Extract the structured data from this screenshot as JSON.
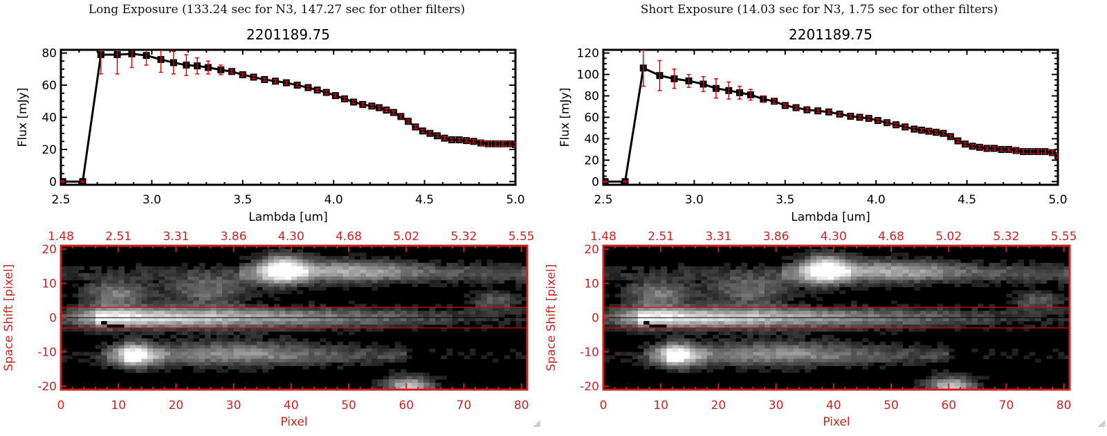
{
  "panels": [
    {
      "id": "long",
      "exposure_title": "Long Exposure (133.24 sec for N3, 147.27 sec for other filters)",
      "spectrum_title": "2201189.75",
      "colors": {
        "line": "#000000",
        "error": "#e00000",
        "frame_image": "#cc2222",
        "aperture": "#e00000"
      }
    },
    {
      "id": "short",
      "exposure_title": "Short Exposure (14.03 sec for N3, 1.75 sec for other filters)",
      "spectrum_title": "2201189.75",
      "colors": {
        "line": "#000000",
        "error": "#e00000",
        "frame_image": "#cc2222",
        "aperture": "#e00000"
      }
    }
  ],
  "chart_data": [
    {
      "type": "line",
      "title": "2201189.75",
      "xlabel": "Lambda [um]",
      "ylabel": "Flux [mJy]",
      "xlim": [
        2.5,
        5.0
      ],
      "ylim": [
        -2,
        82
      ],
      "xticks": [
        "2.5",
        "3.0",
        "3.5",
        "4.0",
        "4.5",
        "5.0"
      ],
      "xtick_values": [
        2.5,
        3.0,
        3.5,
        4.0,
        4.5,
        5.0
      ],
      "yticks": [
        "0",
        "20",
        "40",
        "60",
        "80"
      ],
      "ytick_values": [
        0,
        20,
        40,
        60,
        80
      ],
      "grid": false,
      "series": [
        {
          "name": "Long Exposure",
          "x": [
            2.51,
            2.62,
            2.72,
            2.81,
            2.89,
            2.97,
            3.05,
            3.12,
            3.19,
            3.25,
            3.31,
            3.38,
            3.44,
            3.5,
            3.56,
            3.62,
            3.68,
            3.74,
            3.8,
            3.86,
            3.91,
            3.96,
            4.01,
            4.06,
            4.11,
            4.16,
            4.21,
            4.25,
            4.29,
            4.33,
            4.37,
            4.41,
            4.45,
            4.49,
            4.53,
            4.57,
            4.61,
            4.65,
            4.69,
            4.73,
            4.77,
            4.81,
            4.85,
            4.89,
            4.93,
            4.97,
            5.0
          ],
          "y": [
            0,
            0,
            79,
            79,
            79.5,
            78.5,
            76,
            74,
            72.5,
            72,
            71,
            69.5,
            68.5,
            66.5,
            65,
            63.5,
            62.5,
            61.5,
            60,
            58.5,
            57,
            55.5,
            53.5,
            51.5,
            49.5,
            48,
            47,
            46,
            44.5,
            43,
            40.5,
            37.5,
            34,
            31.5,
            30,
            28.5,
            27,
            26,
            26,
            25.5,
            25,
            24,
            23.5,
            23.5,
            23.5,
            23.5,
            23
          ],
          "err": [
            0.5,
            0.5,
            12,
            12,
            8.5,
            6,
            8,
            7,
            6.5,
            5,
            4,
            3,
            1,
            1,
            1,
            1,
            1,
            1,
            1,
            1,
            1,
            1,
            1,
            1,
            1,
            1,
            1,
            1,
            1,
            1,
            1,
            1,
            1,
            1,
            1,
            1,
            1,
            1,
            1,
            1,
            1,
            1.5,
            1.5,
            1.5,
            1.5,
            1.5,
            1.5
          ]
        }
      ]
    },
    {
      "type": "line",
      "title": "2201189.75",
      "xlabel": "Lambda [um]",
      "ylabel": "Flux [mJy]",
      "xlim": [
        2.5,
        5.0
      ],
      "ylim": [
        -3,
        123
      ],
      "xticks": [
        "2.5",
        "3.0",
        "3.5",
        "4.0",
        "4.5",
        "5.0"
      ],
      "xtick_values": [
        2.5,
        3.0,
        3.5,
        4.0,
        4.5,
        5.0
      ],
      "yticks": [
        "0",
        "20",
        "40",
        "60",
        "80",
        "100",
        "120"
      ],
      "ytick_values": [
        0,
        20,
        40,
        60,
        80,
        100,
        120
      ],
      "grid": false,
      "series": [
        {
          "name": "Short Exposure",
          "x": [
            2.51,
            2.62,
            2.72,
            2.81,
            2.89,
            2.97,
            3.05,
            3.12,
            3.19,
            3.25,
            3.31,
            3.38,
            3.44,
            3.5,
            3.56,
            3.62,
            3.68,
            3.74,
            3.8,
            3.86,
            3.91,
            3.96,
            4.01,
            4.06,
            4.11,
            4.16,
            4.21,
            4.25,
            4.29,
            4.33,
            4.37,
            4.41,
            4.45,
            4.49,
            4.53,
            4.57,
            4.61,
            4.65,
            4.69,
            4.73,
            4.77,
            4.81,
            4.85,
            4.89,
            4.93,
            4.97,
            5.0
          ],
          "y": [
            0,
            0,
            106,
            99,
            96,
            94,
            91,
            87,
            85,
            83,
            81,
            77,
            75,
            71,
            69,
            67,
            66,
            65,
            63,
            61,
            60,
            59,
            57,
            55,
            53,
            51,
            49,
            48,
            47,
            46,
            45,
            42,
            38,
            35,
            33,
            32,
            31,
            31,
            30,
            30,
            29,
            28,
            28,
            28,
            28,
            27,
            24
          ],
          "err": [
            0.5,
            0.5,
            17,
            14,
            9,
            6,
            7,
            9,
            8,
            6,
            5,
            3,
            2,
            1.5,
            1.5,
            1.5,
            1.5,
            1.5,
            1.5,
            1.5,
            1.5,
            1.5,
            1.5,
            1.5,
            1.5,
            1.5,
            1.5,
            1.5,
            1.5,
            1.5,
            1.5,
            1.5,
            1.5,
            1.5,
            1.5,
            1.5,
            1.5,
            1.5,
            1.5,
            1.5,
            2,
            2,
            2,
            2,
            2,
            2,
            2
          ]
        }
      ]
    },
    {
      "type": "heatmap",
      "title": "",
      "xlabel": "Pixel",
      "ylabel": "Space Shift [pixel]",
      "xlim": [
        0,
        81
      ],
      "ylim": [
        -21,
        21
      ],
      "xticks": [
        "0",
        "10",
        "20",
        "30",
        "40",
        "50",
        "60",
        "70",
        "80"
      ],
      "xtick_values": [
        0,
        10,
        20,
        30,
        40,
        50,
        60,
        70,
        80
      ],
      "top_xticks": [
        "1.48",
        "2.51",
        "3.31",
        "3.86",
        "4.30",
        "4.68",
        "5.02",
        "5.32",
        "5.55"
      ],
      "yticks": [
        "-20",
        "-10",
        "0",
        "10",
        "20"
      ],
      "ytick_values": [
        -20,
        -10,
        0,
        10,
        20
      ],
      "aperture_lines": [
        3,
        -3
      ],
      "center_line": 0
    },
    {
      "type": "heatmap",
      "title": "",
      "xlabel": "Pixel",
      "ylabel": "Space Shift [pixel]",
      "xlim": [
        0,
        81
      ],
      "ylim": [
        -21,
        21
      ],
      "xticks": [
        "0",
        "10",
        "20",
        "30",
        "40",
        "50",
        "60",
        "70",
        "80"
      ],
      "xtick_values": [
        0,
        10,
        20,
        30,
        40,
        50,
        60,
        70,
        80
      ],
      "top_xticks": [
        "1.48",
        "2.51",
        "3.31",
        "3.86",
        "4.30",
        "4.68",
        "5.02",
        "5.32",
        "5.55"
      ],
      "yticks": [
        "-20",
        "-10",
        "0",
        "10",
        "20"
      ],
      "ytick_values": [
        -20,
        -10,
        0,
        10,
        20
      ],
      "aperture_lines": [
        3,
        -3
      ],
      "center_line": 0
    }
  ]
}
